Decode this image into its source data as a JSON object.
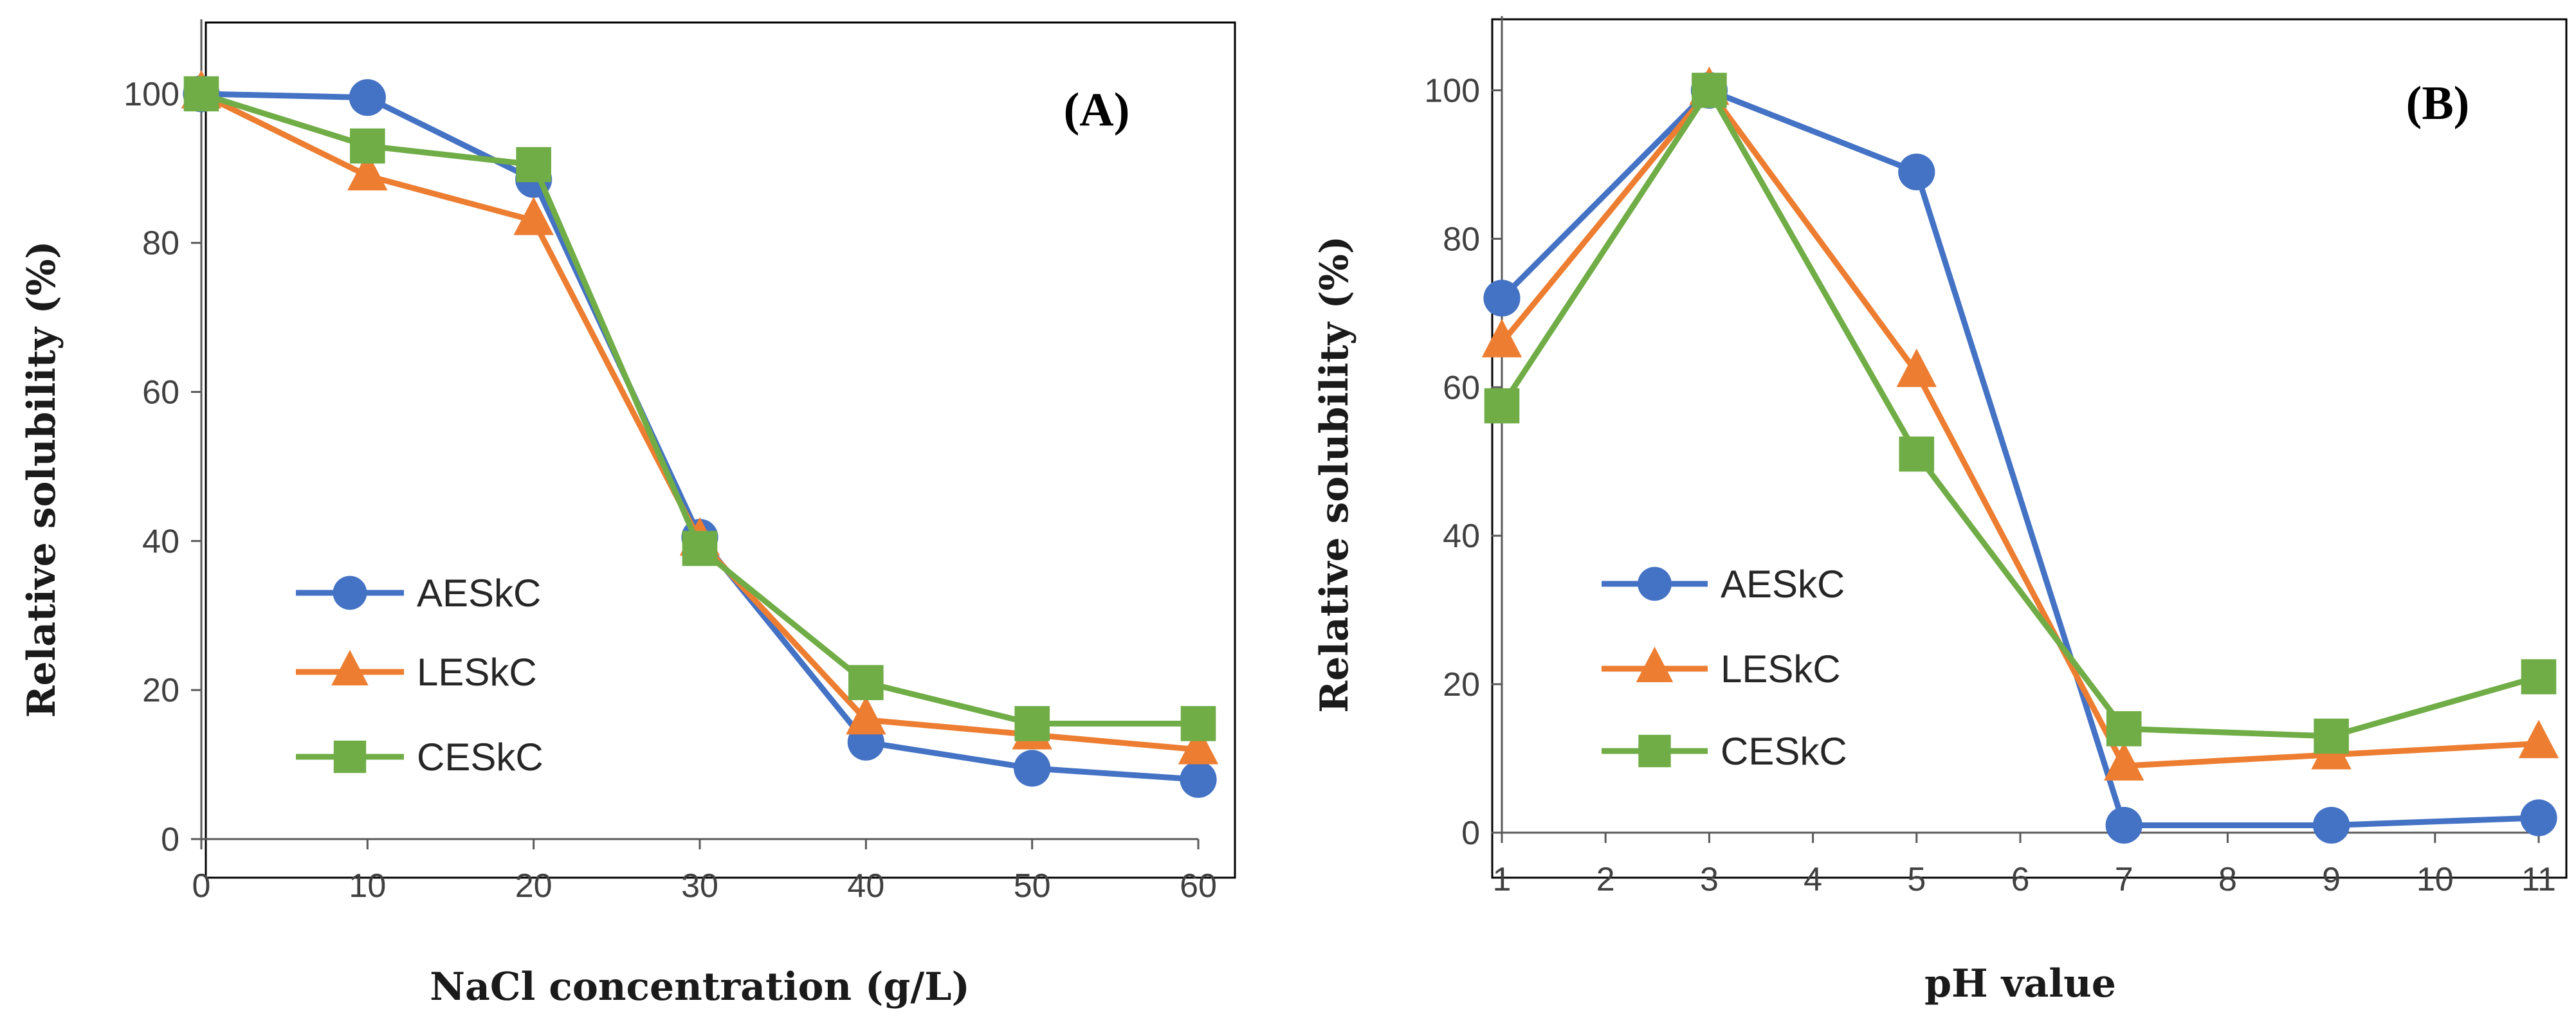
{
  "colors": {
    "AESkC": "#4472C4",
    "LESkC": "#ED7D31",
    "CESkC": "#70AD47",
    "axis": "#595959",
    "frame": "#000000"
  },
  "chart_data": [
    {
      "type": "line",
      "panel": "(A)",
      "xlabel": "NaCl concentration (g/L)",
      "ylabel": "Relative solubility (%)",
      "xlim": [
        0,
        60
      ],
      "ylim": [
        0,
        110
      ],
      "xticks": [
        0,
        10,
        20,
        30,
        40,
        50,
        60
      ],
      "yticks": [
        0,
        20,
        40,
        60,
        80,
        100
      ],
      "legend_position": "left-bottom",
      "series": [
        {
          "name": "AESkC",
          "marker": "circle",
          "x": [
            0,
            10,
            20,
            30,
            40,
            50,
            60
          ],
          "values": [
            100,
            99.5,
            88.5,
            40.5,
            13,
            9.5,
            8
          ]
        },
        {
          "name": "LESkC",
          "marker": "triangle",
          "x": [
            0,
            10,
            20,
            30,
            40,
            50,
            60
          ],
          "values": [
            100,
            89,
            83,
            40,
            16,
            14,
            12
          ]
        },
        {
          "name": "CESkC",
          "marker": "square",
          "x": [
            0,
            10,
            20,
            30,
            40,
            50,
            60
          ],
          "values": [
            100,
            93,
            90.5,
            39,
            21,
            15.5,
            15.5
          ]
        }
      ]
    },
    {
      "type": "line",
      "panel": "(B)",
      "xlabel": "pH value",
      "ylabel": "Relative solubility (%)",
      "xlim": [
        1,
        11
      ],
      "ylim": [
        0,
        110
      ],
      "xticks": [
        1,
        2,
        3,
        4,
        5,
        6,
        7,
        8,
        9,
        10,
        11
      ],
      "yticks": [
        0,
        20,
        40,
        60,
        80,
        100
      ],
      "legend_position": "left-middle",
      "series": [
        {
          "name": "AESkC",
          "marker": "circle",
          "x": [
            1,
            3,
            5,
            7,
            9,
            11
          ],
          "values": [
            72,
            100,
            89,
            1,
            1,
            2
          ]
        },
        {
          "name": "LESkC",
          "marker": "triangle",
          "x": [
            1,
            3,
            5,
            7,
            9,
            11
          ],
          "values": [
            66,
            100,
            62,
            9,
            10.5,
            12
          ]
        },
        {
          "name": "CESkC",
          "marker": "square",
          "x": [
            1,
            3,
            5,
            7,
            9,
            11
          ],
          "values": [
            57.5,
            100,
            51,
            14,
            13,
            21
          ]
        }
      ]
    }
  ]
}
